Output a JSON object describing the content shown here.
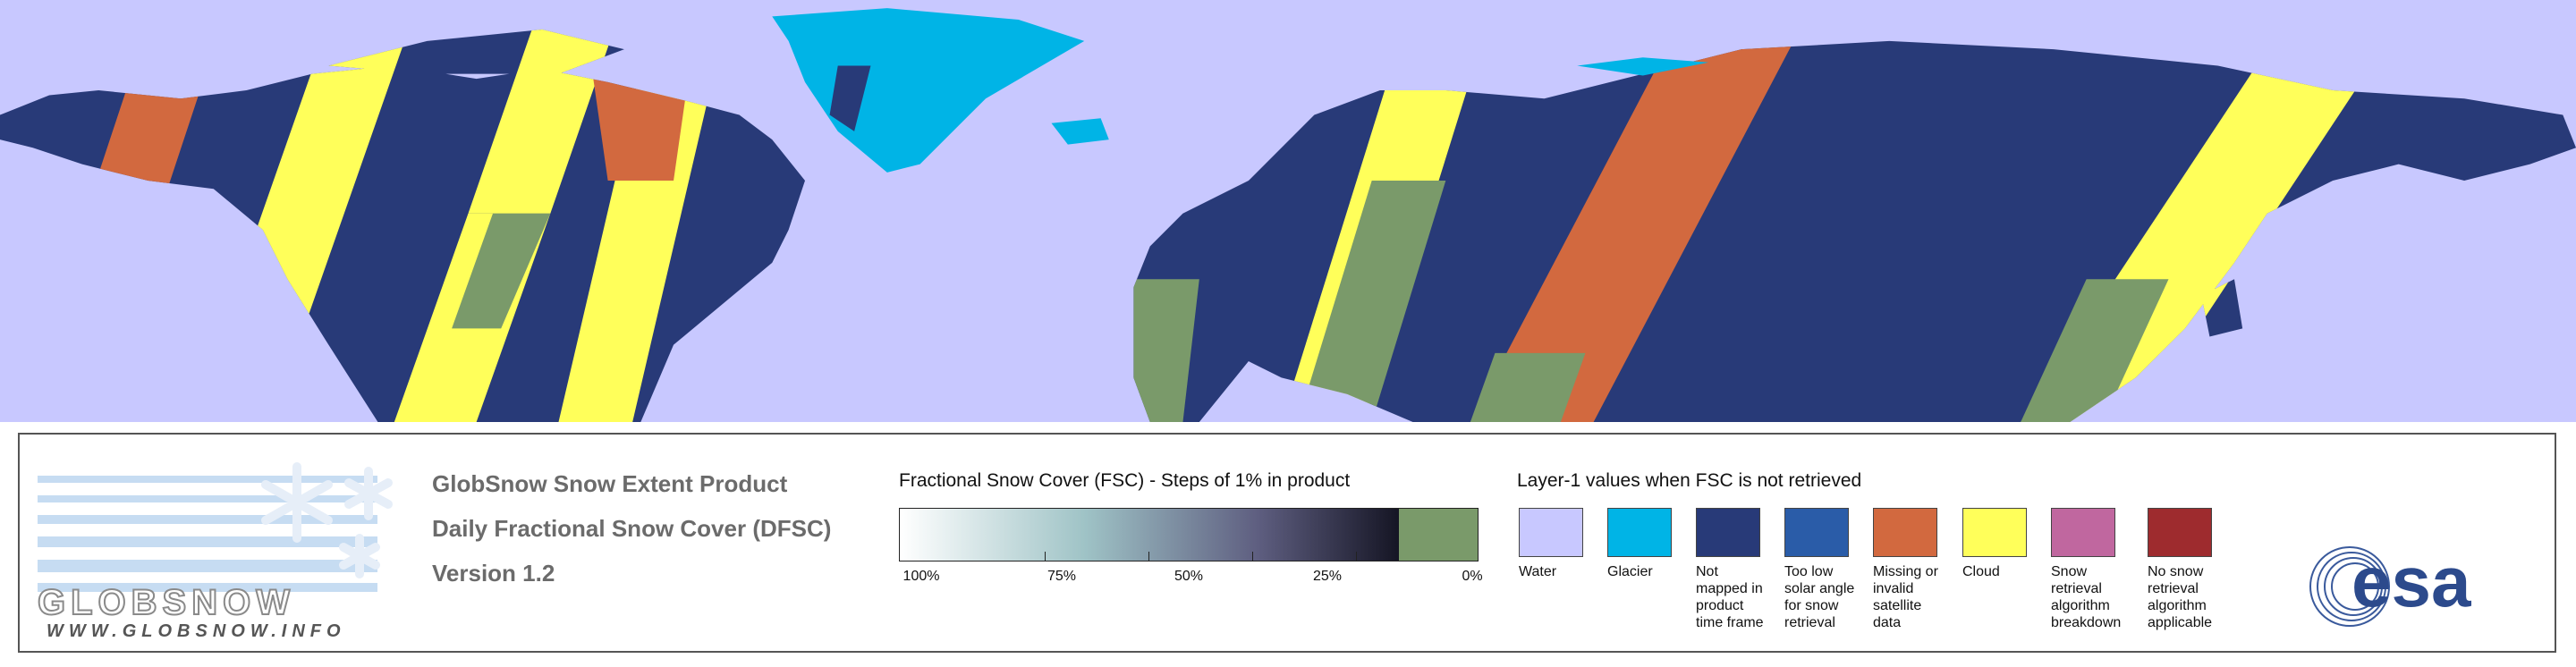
{
  "header": {
    "title": "GlobSnow Snow Extent Product",
    "subtitle": "Daily Fractional Snow Cover (DFSC)",
    "version": "Version 1.2"
  },
  "logo": {
    "name": "GLOBSNOW",
    "url": "WWW.GLOBSNOW.INFO",
    "partner": "esa"
  },
  "fsc_scale": {
    "title": "Fractional Snow Cover (FSC) - Steps of 1% in product",
    "ticks": [
      "100%",
      "75%",
      "50%",
      "25%",
      "0%"
    ]
  },
  "layer1": {
    "title": "Layer-1 values when FSC is not retrieved",
    "items": [
      {
        "label": "Water",
        "color": "#c8c8ff"
      },
      {
        "label": "Glacier",
        "color": "#00b4e6"
      },
      {
        "label": "Not mapped in product time frame",
        "color": "#283a78"
      },
      {
        "label": "Too low solar angle for snow retrieval",
        "color": "#2a5ca8"
      },
      {
        "label": "Missing or invalid satellite data",
        "color": "#d2693f"
      },
      {
        "label": "Cloud",
        "color": "#ffff5a"
      },
      {
        "label": "Snow retrieval algorithm breakdown",
        "color": "#c0679f"
      },
      {
        "label": "No snow retrieval algorithm applicable",
        "color": "#9e2b2e"
      }
    ]
  }
}
